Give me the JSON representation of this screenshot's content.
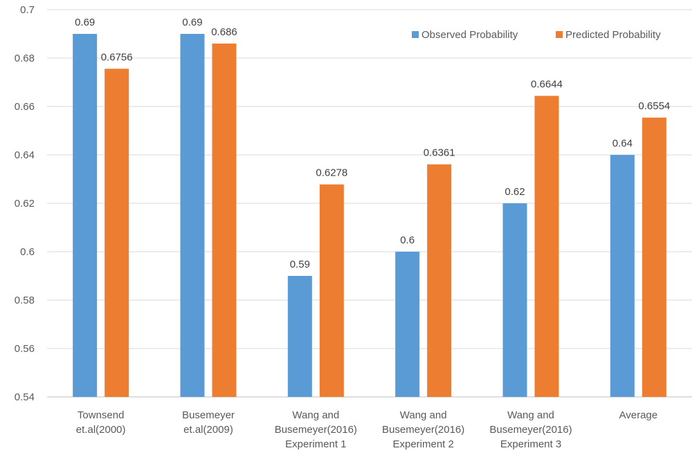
{
  "chart_data": {
    "type": "bar",
    "categories": [
      [
        "Townsend",
        "et.al(2000)"
      ],
      [
        "Busemeyer",
        "et.al(2009)"
      ],
      [
        "Wang and",
        "Busemeyer(2016)",
        "Experiment 1"
      ],
      [
        "Wang and",
        "Busemeyer(2016)",
        "Experiment 2"
      ],
      [
        "Wang and",
        "Busemeyer(2016)",
        "Experiment 3"
      ],
      [
        "Average"
      ]
    ],
    "series": [
      {
        "name": "Observed Probability",
        "color": "#5b9bd5",
        "values": [
          0.69,
          0.69,
          0.59,
          0.6,
          0.62,
          0.64
        ],
        "labels": [
          "0.69",
          "0.69",
          "0.59",
          "0.6",
          "0.62",
          "0.64"
        ]
      },
      {
        "name": "Predicted Probability",
        "color": "#ed7d31",
        "values": [
          0.6756,
          0.686,
          0.6278,
          0.6361,
          0.6644,
          0.6554
        ],
        "labels": [
          "0.6756",
          "0.686",
          "0.6278",
          "0.6361",
          "0.6644",
          "0.6554"
        ]
      }
    ],
    "y_ticks": [
      "0.54",
      "0.56",
      "0.58",
      "0.6",
      "0.62",
      "0.64",
      "0.66",
      "0.68",
      "0.7"
    ],
    "ylim": [
      0.54,
      0.7
    ],
    "grid": true,
    "legend_position": "top-right",
    "title": "",
    "xlabel": "",
    "ylabel": ""
  }
}
